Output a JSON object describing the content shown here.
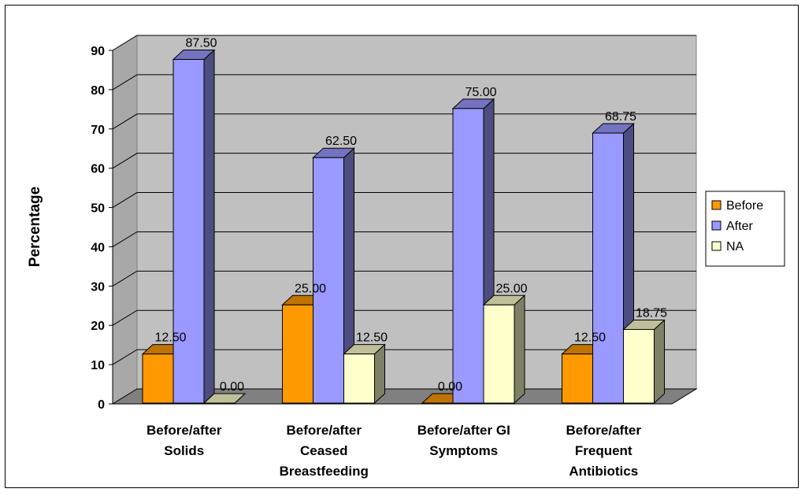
{
  "chart_data": {
    "type": "bar",
    "title": "",
    "xlabel": "",
    "ylabel": "Percentage",
    "ylim": [
      0,
      90
    ],
    "yticks": [
      0,
      10,
      20,
      30,
      40,
      50,
      60,
      70,
      80,
      90
    ],
    "grid": true,
    "legend_position": "right",
    "categories": [
      [
        "Before/after",
        "Solids"
      ],
      [
        "Before/after",
        "Ceased",
        "Breastfeeding"
      ],
      [
        "Before/after GI",
        "Symptoms"
      ],
      [
        "Before/after",
        "Frequent",
        "Antibiotics"
      ]
    ],
    "series": [
      {
        "name": "Before",
        "color": "#FF9900",
        "values": [
          12.5,
          25.0,
          0.0,
          12.5
        ],
        "labels": [
          "12.50",
          "25.00",
          "0.00",
          "12.50"
        ]
      },
      {
        "name": "After",
        "color": "#9999FF",
        "values": [
          87.5,
          62.5,
          75.0,
          68.75
        ],
        "labels": [
          "87.50",
          "62.50",
          "75.00",
          "68.75"
        ]
      },
      {
        "name": "NA",
        "color": "#FFFFCC",
        "values": [
          0.0,
          12.5,
          25.0,
          18.75
        ],
        "labels": [
          "0.00",
          "12.50",
          "25.00",
          "18.75"
        ]
      }
    ]
  }
}
